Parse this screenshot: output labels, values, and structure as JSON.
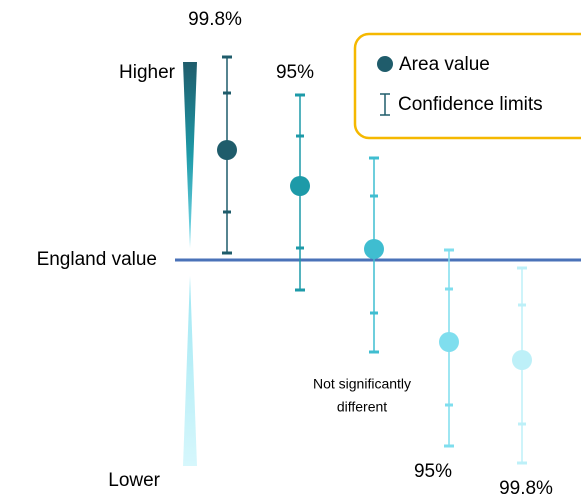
{
  "labels": {
    "top_left_level": "99.8%",
    "top_right_level": "95%",
    "higher": "Higher",
    "lower": "Lower",
    "england": "England value",
    "not_significant": [
      "Not significantly",
      "different"
    ],
    "bottom_left_level": "95%",
    "bottom_right_level": "99.8%"
  },
  "legend": {
    "area_value": "Area value",
    "confidence_limits": "Confidence limits"
  }
}
